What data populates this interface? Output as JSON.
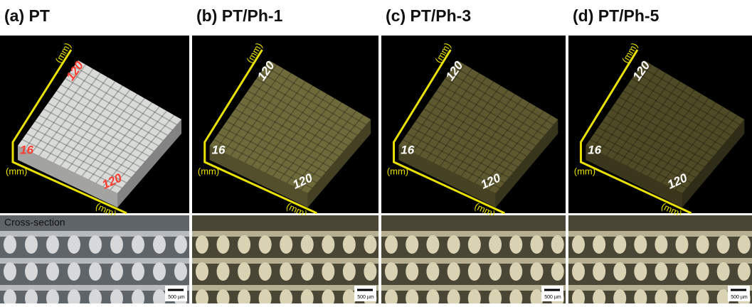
{
  "panels": [
    {
      "title": "(a) PT",
      "caption": "Cross-section",
      "dims": {
        "top": "120",
        "side": "16",
        "front": "120"
      },
      "units": [
        "(mm)",
        "(mm)",
        "(mm)"
      ],
      "scale": "500 µm",
      "cube_color": "#d9dbd8",
      "label_color": "#ff3b30"
    },
    {
      "title": "(b) PT/Ph-1",
      "dims": {
        "top": "120",
        "side": "16",
        "front": "120"
      },
      "units": [
        "(mm)",
        "(mm)",
        "(mm)"
      ],
      "scale": "500 µm",
      "cube_color": "#6f6a3c",
      "label_color": "#ffffff"
    },
    {
      "title": "(c) PT/Ph-3",
      "dims": {
        "top": "120",
        "side": "16",
        "front": "120"
      },
      "units": [
        "(mm)",
        "(mm)",
        "(mm)"
      ],
      "scale": "500 µm",
      "cube_color": "#5e5830",
      "label_color": "#ffffff"
    },
    {
      "title": "(d) PT/Ph-5",
      "dims": {
        "top": "120",
        "side": "16",
        "front": "120"
      },
      "units": [
        "(mm)",
        "(mm)",
        "(mm)"
      ],
      "scale": "500 µm",
      "cube_color": "#4f4a26",
      "label_color": "#ffffff"
    }
  ]
}
